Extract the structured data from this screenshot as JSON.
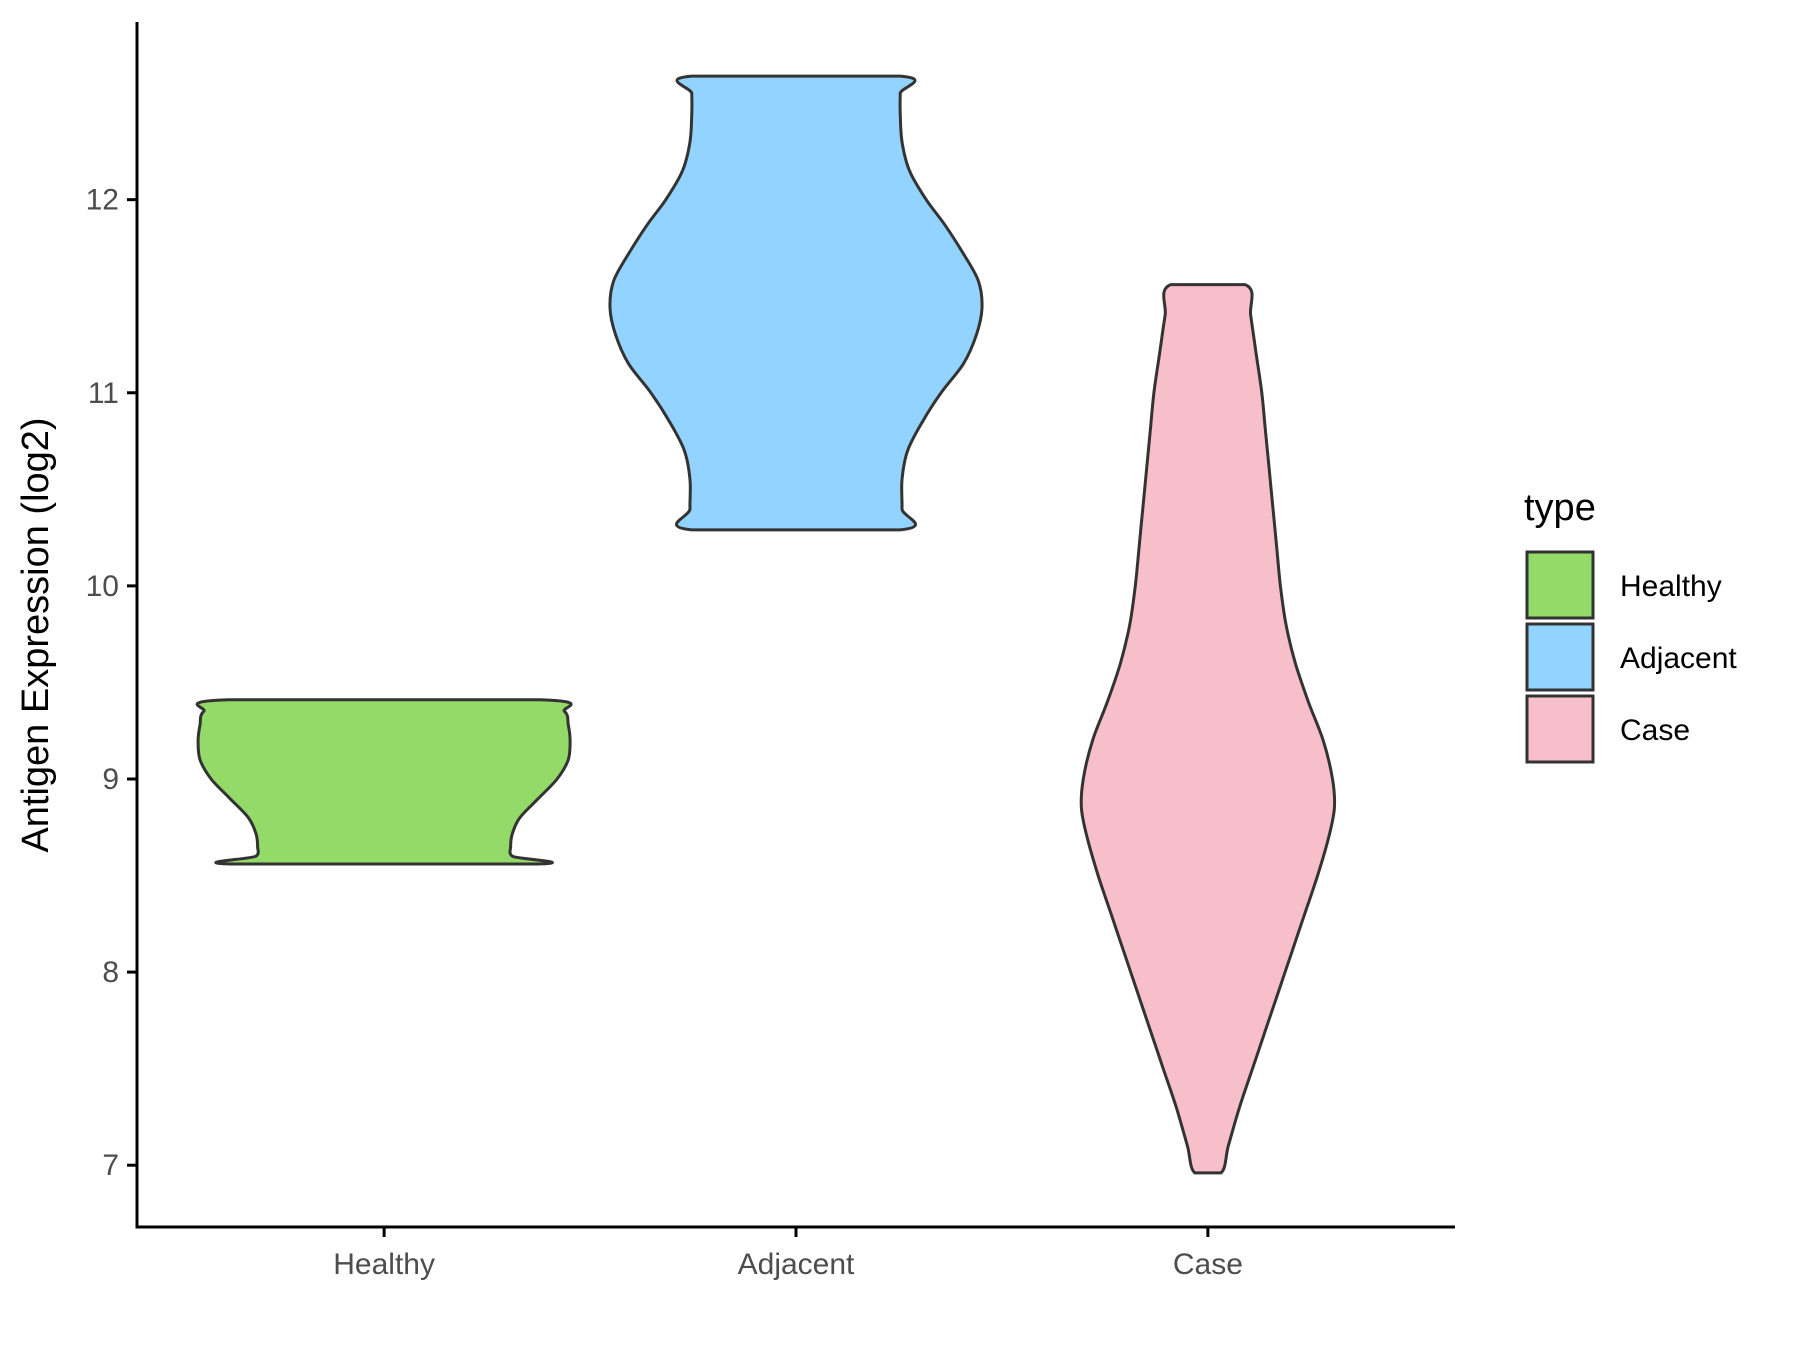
{
  "chart_data": {
    "type": "violin",
    "title": "",
    "xlabel": "",
    "ylabel": "Antigen Expression (log2)",
    "ylim": [
      6.68,
      12.92
    ],
    "y_ticks": [
      7,
      8,
      9,
      10,
      11,
      12
    ],
    "categories": [
      "Healthy",
      "Adjacent",
      "Case"
    ],
    "grid": false,
    "legend": {
      "title": "type",
      "position": "right",
      "entries": [
        "Healthy",
        "Adjacent",
        "Case"
      ]
    },
    "series": [
      {
        "name": "Healthy",
        "color": "#93DA69",
        "min": 8.56,
        "max": 9.41,
        "profile": [
          [
            8.56,
            0.82
          ],
          [
            8.6,
            0.69
          ],
          [
            8.65,
            0.68
          ],
          [
            8.72,
            0.69
          ],
          [
            8.8,
            0.73
          ],
          [
            8.9,
            0.83
          ],
          [
            9.0,
            0.93
          ],
          [
            9.1,
            0.99
          ],
          [
            9.2,
            1.0
          ],
          [
            9.28,
            0.99
          ],
          [
            9.35,
            0.97
          ],
          [
            9.41,
            0.84
          ]
        ]
      },
      {
        "name": "Adjacent",
        "color": "#92D3FF",
        "min": 10.29,
        "max": 12.64,
        "profile": [
          [
            10.29,
            0.56
          ],
          [
            10.4,
            0.57
          ],
          [
            10.55,
            0.57
          ],
          [
            10.7,
            0.6
          ],
          [
            10.85,
            0.68
          ],
          [
            11.0,
            0.78
          ],
          [
            11.15,
            0.9
          ],
          [
            11.3,
            0.97
          ],
          [
            11.44,
            1.0
          ],
          [
            11.58,
            0.98
          ],
          [
            11.72,
            0.9
          ],
          [
            11.87,
            0.8
          ],
          [
            12.0,
            0.7
          ],
          [
            12.15,
            0.61
          ],
          [
            12.3,
            0.57
          ],
          [
            12.45,
            0.56
          ],
          [
            12.55,
            0.56
          ],
          [
            12.64,
            0.56
          ]
        ]
      },
      {
        "name": "Case",
        "color": "#F7BFCA",
        "min": 6.96,
        "max": 11.56,
        "profile": [
          [
            6.96,
            0.07
          ],
          [
            7.1,
            0.11
          ],
          [
            7.3,
            0.17
          ],
          [
            7.5,
            0.24
          ],
          [
            7.7,
            0.31
          ],
          [
            7.9,
            0.38
          ],
          [
            8.1,
            0.45
          ],
          [
            8.3,
            0.52
          ],
          [
            8.5,
            0.59
          ],
          [
            8.7,
            0.65
          ],
          [
            8.85,
            0.68
          ],
          [
            9.0,
            0.67
          ],
          [
            9.2,
            0.62
          ],
          [
            9.4,
            0.54
          ],
          [
            9.6,
            0.47
          ],
          [
            9.8,
            0.42
          ],
          [
            10.0,
            0.39
          ],
          [
            10.2,
            0.37
          ],
          [
            10.4,
            0.35
          ],
          [
            10.6,
            0.33
          ],
          [
            10.8,
            0.31
          ],
          [
            11.0,
            0.29
          ],
          [
            11.2,
            0.26
          ],
          [
            11.4,
            0.23
          ],
          [
            11.56,
            0.2
          ]
        ]
      }
    ]
  },
  "colors": {
    "outline": "#333333",
    "axis": "#000000",
    "tick_text": "#4d4d4d"
  }
}
